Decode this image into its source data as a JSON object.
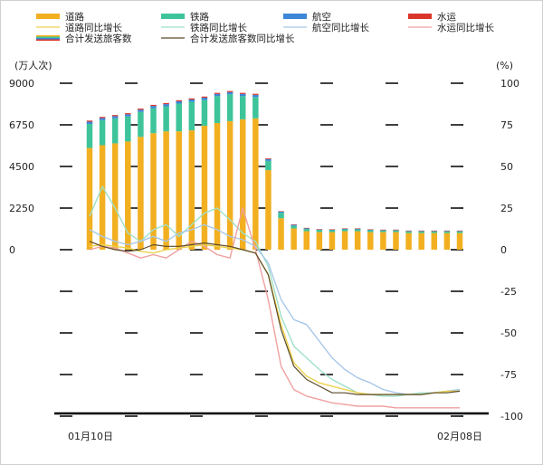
{
  "chart_data": {
    "type": "bar",
    "x_start_label": "01月10日",
    "x_end_label": "02月08日",
    "left_axis": {
      "unit": "(万人次)",
      "ticks": [
        0,
        2250,
        4500,
        6750,
        9000
      ],
      "ylim": [
        0,
        9000
      ]
    },
    "right_axis": {
      "unit": "(%)",
      "ticks": [
        -100,
        -75,
        -50,
        -25,
        0,
        25,
        50,
        75,
        100
      ],
      "ylim": [
        -100,
        100
      ]
    },
    "colors": {
      "road": "#f2b021",
      "rail": "#3ec49a",
      "air": "#3d86d8",
      "water": "#d9352a",
      "road_yoy": "#ecd14a",
      "rail_yoy": "#9fe0c8",
      "air_yoy": "#a8c8e8",
      "water_yoy": "#f0a0a0",
      "total_yoy": "#5a4a2a"
    },
    "legend": [
      {
        "key": "road",
        "label": "道路",
        "kind": "bar"
      },
      {
        "key": "rail",
        "label": "铁路",
        "kind": "bar"
      },
      {
        "key": "air",
        "label": "航空",
        "kind": "bar"
      },
      {
        "key": "water",
        "label": "水运",
        "kind": "bar"
      },
      {
        "key": "road_yoy",
        "label": "道路同比增长",
        "kind": "line"
      },
      {
        "key": "rail_yoy",
        "label": "铁路同比增长",
        "kind": "line"
      },
      {
        "key": "air_yoy",
        "label": "航空同比增长",
        "kind": "line"
      },
      {
        "key": "water_yoy",
        "label": "水运同比增长",
        "kind": "line"
      },
      {
        "key": "total",
        "label": "合计发送旅客数",
        "kind": "bar"
      },
      {
        "key": "total_yoy",
        "label": "合计发送旅客数同比增长",
        "kind": "line"
      }
    ],
    "bars": {
      "road": [
        5500,
        5650,
        5750,
        5850,
        6100,
        6300,
        6400,
        6400,
        6450,
        6700,
        6850,
        6950,
        7050,
        7100,
        4300,
        1700,
        1150,
        1000,
        950,
        950,
        1000,
        1000,
        950,
        950,
        950,
        900,
        900,
        900,
        900,
        900
      ],
      "rail": [
        1300,
        1350,
        1350,
        1350,
        1350,
        1350,
        1350,
        1500,
        1550,
        1400,
        1450,
        1450,
        1250,
        1150,
        500,
        300,
        150,
        120,
        110,
        100,
        100,
        100,
        100,
        90,
        90,
        90,
        90,
        90,
        90,
        90
      ],
      "air": [
        120,
        120,
        120,
        120,
        120,
        120,
        120,
        120,
        120,
        120,
        120,
        120,
        120,
        120,
        100,
        60,
        50,
        45,
        40,
        40,
        40,
        40,
        40,
        35,
        35,
        35,
        35,
        35,
        35,
        35
      ],
      "water": [
        60,
        60,
        60,
        60,
        60,
        60,
        60,
        60,
        60,
        60,
        60,
        60,
        60,
        60,
        40,
        20,
        15,
        15,
        12,
        12,
        12,
        12,
        12,
        10,
        10,
        10,
        10,
        10,
        10,
        10
      ]
    },
    "lines": {
      "road_yoy": [
        2,
        3,
        2,
        1,
        -1,
        -2,
        0,
        1,
        2,
        3,
        2,
        1,
        0,
        -2,
        -15,
        -45,
        -68,
        -76,
        -80,
        -82,
        -84,
        -86,
        -87,
        -87,
        -87,
        -87,
        -87,
        -86,
        -85,
        -85
      ],
      "rail_yoy": [
        20,
        38,
        25,
        10,
        5,
        12,
        15,
        8,
        15,
        22,
        25,
        18,
        10,
        5,
        -10,
        -40,
        -58,
        -65,
        -72,
        -78,
        -82,
        -86,
        -87,
        -88,
        -88,
        -87,
        -86,
        -86,
        -85,
        -84
      ],
      "air_yoy": [
        12,
        8,
        5,
        3,
        5,
        8,
        5,
        10,
        12,
        15,
        12,
        8,
        6,
        2,
        -8,
        -30,
        -42,
        -45,
        -55,
        -65,
        -72,
        -77,
        -80,
        -84,
        -86,
        -87,
        -87,
        -86,
        -85,
        -84
      ],
      "water_yoy": [
        0,
        2,
        1,
        -2,
        -5,
        -3,
        -5,
        0,
        5,
        2,
        -3,
        -5,
        25,
        0,
        -30,
        -70,
        -84,
        -88,
        -90,
        -92,
        -93,
        -94,
        -94,
        -94,
        -95,
        -95,
        -95,
        -95,
        -95,
        -95
      ],
      "total_yoy": [
        5,
        2,
        0,
        -1,
        0,
        3,
        2,
        2,
        3,
        4,
        3,
        2,
        0,
        -2,
        -15,
        -48,
        -70,
        -78,
        -82,
        -86,
        -86,
        -87,
        -87,
        -87,
        -87,
        -87,
        -87,
        -86,
        -86,
        -85
      ]
    }
  }
}
